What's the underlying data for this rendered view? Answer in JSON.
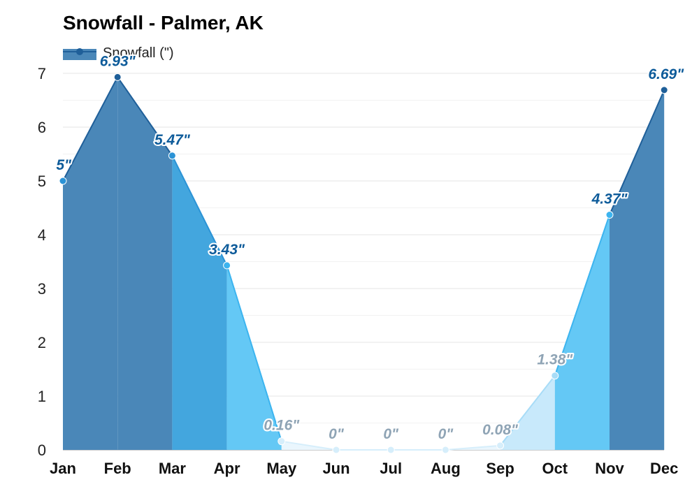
{
  "chart_data": {
    "type": "area",
    "title": "Snowfall - Palmer, AK",
    "legend": {
      "position": "top-left",
      "label": "Snowfall (\")"
    },
    "categories": [
      "Jan",
      "Feb",
      "Mar",
      "Apr",
      "May",
      "Jun",
      "Jul",
      "Aug",
      "Sep",
      "Oct",
      "Nov",
      "Dec"
    ],
    "series": [
      {
        "name": "Snowfall (\")",
        "values": [
          5,
          6.93,
          5.47,
          3.43,
          0.16,
          0,
          0,
          0,
          0.08,
          1.38,
          4.37,
          6.69
        ]
      }
    ],
    "data_labels": [
      "5\"",
      "6.93\"",
      "5.47\"",
      "3.43\"",
      "0.16\"",
      "0\"",
      "0\"",
      "0\"",
      "0.08\"",
      "1.38\"",
      "4.37\"",
      "6.69\""
    ],
    "yticks": [
      "0",
      "1",
      "2",
      "3",
      "4",
      "5",
      "6",
      "7"
    ],
    "ylim": [
      0,
      7
    ],
    "grid": true,
    "colors": {
      "level_heavy_fill": "#4a87b8",
      "level_heavy_line": "#1f5f99",
      "level_high_fill": "#43a6de",
      "level_high_line": "#2b93d6",
      "level_mid_fill": "#64c8f5",
      "level_mid_line": "#3cb4ef",
      "level_low_fill": "#c8e9fb",
      "level_low_line": "#a8dcf7",
      "level_trace_fill": "#eaf6fd",
      "level_trace_line": "#d6eefb",
      "label_dark": "#0d5b9a",
      "label_light": "#8fa4b5",
      "grid_major": "#e6e6e6",
      "grid_minor": "#f2f2f2"
    }
  }
}
